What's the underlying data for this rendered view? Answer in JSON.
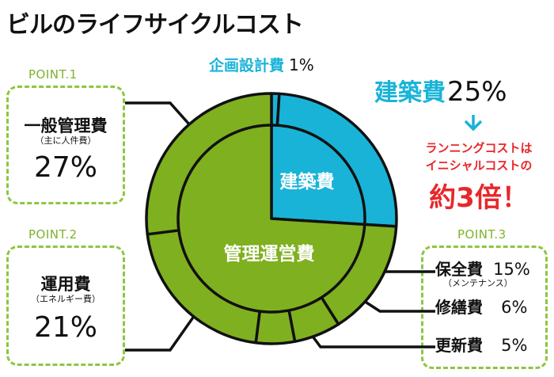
{
  "title": "ビルのライフサイクルコスト",
  "colors": {
    "green": "#7fb01f",
    "blue": "#19b3d8",
    "dashed": "#8ec63f",
    "red": "#e8272b"
  },
  "planning": {
    "label": "企画設計費",
    "value": "1%"
  },
  "construction": {
    "label": "建築費",
    "value": "25%"
  },
  "callout": {
    "line1": "ランニングコストは",
    "line2": "イニシャルコストの",
    "line3": "約3倍！"
  },
  "point1": {
    "label": "POINT.1",
    "name": "一般管理費",
    "sub": "（主に人件費）",
    "value": "27%"
  },
  "point2": {
    "label": "POINT.2",
    "name": "運用費",
    "sub": "（エネルギー費）",
    "value": "21%"
  },
  "point3": {
    "label": "POINT.3",
    "rows": [
      {
        "name": "保全費",
        "value": "15%",
        "sub": "（メンテナンス）"
      },
      {
        "name": "修繕費",
        "value": "6%"
      },
      {
        "name": "更新費",
        "value": "5%"
      }
    ]
  },
  "chart_data": {
    "type": "pie",
    "inner_ring": [
      {
        "label": "建築費",
        "value": 26
      },
      {
        "label": "管理運営費",
        "value": 74
      }
    ],
    "outer_ring": [
      {
        "label": "企画設計費",
        "value": 1
      },
      {
        "label": "建築費",
        "value": 25
      },
      {
        "label": "保全費",
        "value": 15
      },
      {
        "label": "修繕費",
        "value": 6
      },
      {
        "label": "更新費",
        "value": 5
      },
      {
        "label": "運用費",
        "value": 21
      },
      {
        "label": "一般管理費",
        "value": 27
      }
    ]
  }
}
